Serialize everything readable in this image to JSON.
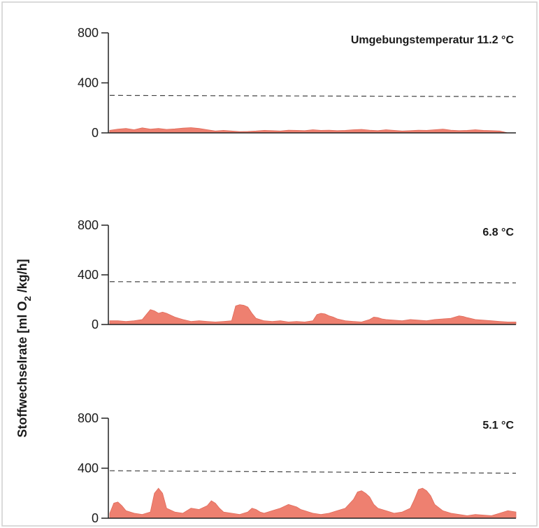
{
  "ylabel_parts": {
    "pre": "Stoffwechselrate [ml O",
    "sub": "2",
    "post": " /kg/h]"
  },
  "chart_data": [
    {
      "type": "area",
      "label_prefix": "Umgebungstemperatur",
      "label": "11.2 °C",
      "ylim": [
        0,
        800
      ],
      "yticks": [
        0,
        400,
        800
      ],
      "threshold": [
        300,
        290
      ],
      "color": "#ee8070",
      "x": [
        0,
        2,
        4,
        6,
        8,
        10,
        12,
        14,
        16,
        18,
        20,
        22,
        24,
        26,
        28,
        30,
        32,
        34,
        36,
        38,
        40,
        42,
        44,
        46,
        48,
        50,
        52,
        54,
        56,
        58,
        60,
        62,
        64,
        66,
        68,
        70,
        72,
        74,
        76,
        78,
        80,
        82,
        84,
        86,
        88,
        90,
        92,
        94,
        96,
        98,
        100
      ],
      "values": [
        20,
        30,
        35,
        25,
        40,
        30,
        35,
        28,
        32,
        38,
        42,
        35,
        25,
        15,
        20,
        15,
        10,
        12,
        15,
        20,
        18,
        15,
        22,
        20,
        18,
        25,
        20,
        22,
        18,
        20,
        25,
        28,
        22,
        18,
        25,
        20,
        15,
        18,
        22,
        20,
        25,
        30,
        22,
        18,
        20,
        25,
        20,
        18,
        15,
        0,
        0
      ]
    },
    {
      "type": "area",
      "label": "6.8 °C",
      "ylim": [
        0,
        800
      ],
      "yticks": [
        0,
        400,
        800
      ],
      "threshold": [
        345,
        335
      ],
      "color": "#ee8070",
      "x": [
        0,
        2,
        4,
        6,
        8,
        9,
        10,
        11,
        12,
        13,
        14,
        16,
        18,
        20,
        22,
        24,
        26,
        28,
        30,
        31,
        32,
        33,
        34,
        35,
        36,
        38,
        40,
        42,
        44,
        46,
        48,
        50,
        51,
        52,
        53,
        54,
        55,
        56,
        58,
        60,
        62,
        64,
        65,
        66,
        67,
        68,
        70,
        72,
        74,
        76,
        78,
        80,
        82,
        84,
        85,
        86,
        87,
        88,
        90,
        92,
        94,
        96,
        98,
        100
      ],
      "values": [
        30,
        30,
        25,
        30,
        40,
        80,
        120,
        110,
        90,
        100,
        90,
        60,
        40,
        25,
        30,
        25,
        20,
        25,
        30,
        150,
        160,
        155,
        140,
        90,
        50,
        30,
        25,
        30,
        20,
        25,
        20,
        30,
        80,
        90,
        85,
        70,
        60,
        45,
        30,
        25,
        20,
        40,
        60,
        55,
        45,
        40,
        35,
        30,
        40,
        35,
        30,
        40,
        45,
        50,
        60,
        70,
        65,
        55,
        40,
        35,
        30,
        25,
        20,
        20
      ]
    },
    {
      "type": "area",
      "label": "5.1 °C",
      "ylim": [
        0,
        800
      ],
      "yticks": [
        0,
        400,
        800
      ],
      "threshold": [
        380,
        360
      ],
      "color": "#ee8070",
      "x": [
        0,
        1,
        2,
        3,
        4,
        6,
        8,
        10,
        11,
        12,
        13,
        14,
        16,
        18,
        20,
        22,
        24,
        25,
        26,
        27,
        28,
        30,
        32,
        34,
        35,
        36,
        37,
        38,
        40,
        42,
        44,
        46,
        47,
        48,
        49,
        50,
        52,
        54,
        56,
        58,
        60,
        61,
        62,
        63,
        64,
        65,
        66,
        68,
        70,
        72,
        74,
        75,
        76,
        77,
        78,
        79,
        80,
        82,
        84,
        86,
        88,
        90,
        92,
        94,
        96,
        98,
        100
      ],
      "values": [
        40,
        120,
        130,
        100,
        60,
        40,
        30,
        50,
        200,
        240,
        200,
        80,
        50,
        40,
        80,
        70,
        100,
        140,
        120,
        80,
        50,
        40,
        30,
        50,
        80,
        70,
        50,
        40,
        60,
        80,
        110,
        90,
        70,
        60,
        50,
        40,
        30,
        40,
        60,
        80,
        150,
        210,
        220,
        200,
        170,
        110,
        80,
        60,
        40,
        50,
        80,
        150,
        230,
        240,
        220,
        180,
        110,
        60,
        40,
        30,
        20,
        30,
        25,
        20,
        40,
        60,
        50
      ]
    }
  ]
}
